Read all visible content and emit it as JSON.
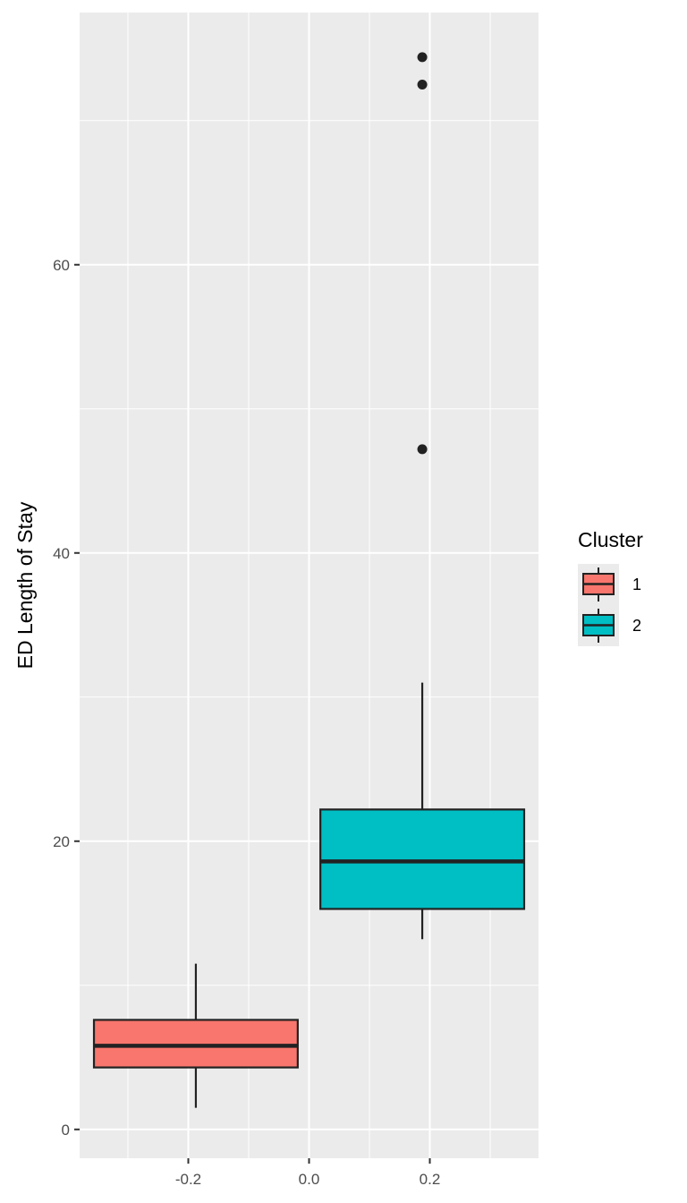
{
  "chart_data": {
    "type": "boxplot",
    "xlabel": "",
    "ylabel": "ED Length of Stay",
    "xlim": [
      -0.38,
      0.38
    ],
    "ylim": [
      -2.0,
      77.5
    ],
    "x_ticks": [
      -0.2,
      0.0,
      0.2
    ],
    "x_tick_labels": [
      "-0.2",
      "0.0",
      "0.2"
    ],
    "y_ticks": [
      0,
      20,
      40,
      60
    ],
    "y_tick_labels": [
      "0",
      "20",
      "40",
      "60"
    ],
    "grid": true,
    "legend": {
      "title": "Cluster",
      "position": "right",
      "entries": [
        {
          "label": "1",
          "color": "#F8766D"
        },
        {
          "label": "2",
          "color": "#00BFC4"
        }
      ]
    },
    "series": [
      {
        "name": "1",
        "color": "#F8766D",
        "x_center": -0.1875,
        "box_width": 0.3375,
        "whisker_low": 1.5,
        "q1": 4.3,
        "median": 5.8,
        "q3": 7.6,
        "whisker_high": 11.5,
        "outliers": []
      },
      {
        "name": "2",
        "color": "#00BFC4",
        "x_center": 0.1875,
        "box_width": 0.3375,
        "whisker_low": 13.2,
        "q1": 15.3,
        "median": 18.6,
        "q3": 22.2,
        "whisker_high": 31.0,
        "outliers": [
          47.2,
          72.5,
          74.4
        ]
      }
    ]
  }
}
